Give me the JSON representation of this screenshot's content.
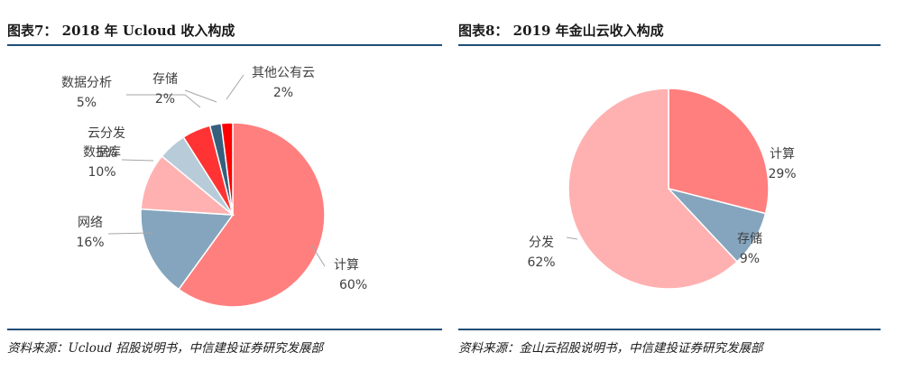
{
  "figures": [
    {
      "title": "图表7： 2018 年 Ucloud 收入构成",
      "source": "资料来源：Ucloud 招股说明书，中信建投证券研究发展部"
    },
    {
      "title": "图表8： 2019 年金山云收入构成",
      "source": "资料来源：金山云招股说明书，中信建投证券研究发展部"
    }
  ],
  "chart_data": [
    {
      "type": "pie",
      "slices": [
        {
          "label": "计算",
          "value": 60,
          "pct": "60%",
          "color": "#ff7f7f"
        },
        {
          "label": "网络",
          "value": 16,
          "pct": "16%",
          "color": "#84a5bd"
        },
        {
          "label": "数据库",
          "value": 10,
          "pct": "10%",
          "color": "#ffb1b1"
        },
        {
          "label": "云分发",
          "value": 5,
          "pct": "5%",
          "color": "#b8cbd8"
        },
        {
          "label": "数据分析",
          "value": 5,
          "pct": "5%",
          "color": "#ff3333"
        },
        {
          "label": "存储",
          "value": 2,
          "pct": "2%",
          "color": "#34607e"
        },
        {
          "label": "其他公有云",
          "value": 2,
          "pct": "2%",
          "color": "#ff0000"
        }
      ]
    },
    {
      "type": "pie",
      "slices": [
        {
          "label": "计算",
          "value": 29,
          "pct": "29%",
          "color": "#ff7f7f"
        },
        {
          "label": "存储",
          "value": 9,
          "pct": "9%",
          "color": "#84a5bd"
        },
        {
          "label": "分发",
          "value": 62,
          "pct": "62%",
          "color": "#ffb1b1"
        }
      ]
    }
  ]
}
